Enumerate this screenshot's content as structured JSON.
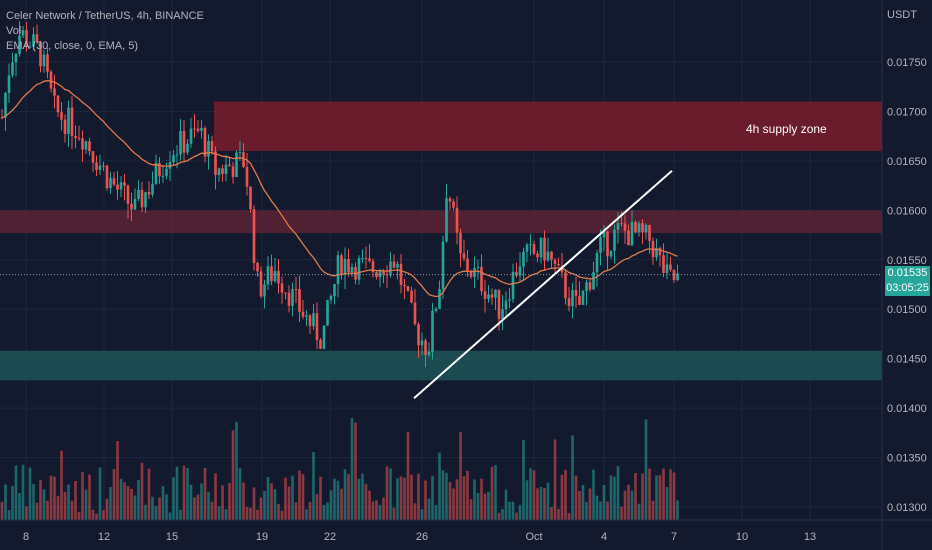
{
  "legend": {
    "symbol": "Celer Network / TetherUS, 4h, BINANCE",
    "volume": "Vol",
    "ema": "EMA (30, close, 0, EMA, 5)"
  },
  "currency": "USDT",
  "price_tag": {
    "price": "0.01535",
    "countdown": "03:05:25"
  },
  "zone_label": "4h supply zone",
  "colors": {
    "background": "#131a2e",
    "up": "#26a69a",
    "down": "#ef5350",
    "ema": "#e07a4a",
    "supply_zone": "#7a1c2c",
    "resistance_zone": "#6b2436",
    "support_zone": "#1f5c5c",
    "trendline": "#ffffff"
  },
  "chart_data": {
    "type": "candlestick",
    "title": "Celer Network / TetherUS, 4h, BINANCE",
    "y_axis_unit": "USDT",
    "y_ticks": [
      0.013,
      0.0135,
      0.014,
      0.0145,
      0.015,
      0.0155,
      0.016,
      0.0165,
      0.017,
      0.0175
    ],
    "y_tick_labels": [
      "0.01300",
      "0.01350",
      "0.01400",
      "0.01450",
      "0.01500",
      "0.01550",
      "0.01600",
      "0.01650",
      "0.01700",
      "0.01750"
    ],
    "x_tick_labels": [
      "8",
      "12",
      "15",
      "19",
      "22",
      "26",
      "Oct",
      "4",
      "7",
      "10",
      "13"
    ],
    "ylim": [
      0.01285,
      0.0182
    ],
    "last_price": 0.01535,
    "zones": [
      {
        "label": "4h supply zone",
        "low": 0.0166,
        "high": 0.0171
      },
      {
        "label": "",
        "low": 0.01577,
        "high": 0.016
      },
      {
        "label": "",
        "low": 0.01428,
        "high": 0.01458
      }
    ],
    "trendline": {
      "start_price": 0.0141,
      "end_price": 0.0164
    },
    "grid": true,
    "legend_position": "top-left"
  }
}
